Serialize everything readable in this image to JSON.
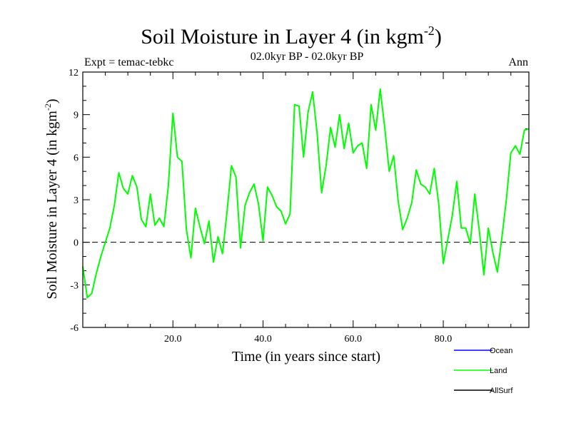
{
  "chart_data": {
    "type": "line",
    "title": "Soil Moisture in Layer 4 (in kgm",
    "title_sup": "-2",
    "title_close": ")",
    "subtitle": "02.0kyr BP - 02.0kyr BP",
    "left_label": "Expt = temac-tebkc",
    "right_label": "Ann",
    "xlabel": "Time (in years since start)",
    "ylabel": "Soil Moisture in Layer 4 (in kgm",
    "ylabel_sup": "-2",
    "ylabel_close": ")",
    "xlim": [
      0,
      99
    ],
    "ylim": [
      -6,
      12
    ],
    "x_ticks": [
      20,
      40,
      60,
      80
    ],
    "x_tick_labels": [
      "20.0",
      "40.0",
      "60.0",
      "80.0"
    ],
    "y_ticks": [
      -6,
      -3,
      0,
      3,
      6,
      9,
      12
    ],
    "y_tick_labels": [
      "-6",
      "-3",
      "0",
      "3",
      "6",
      "9",
      "12"
    ],
    "zero_line": 0,
    "legend": [
      {
        "name": "Ocean",
        "color": "#0000ff"
      },
      {
        "name": "Land",
        "color": "#00ff00"
      },
      {
        "name": "AllSurf",
        "color": "#000000"
      }
    ],
    "series": [
      {
        "name": "Land",
        "color": "#00ff00",
        "x": [
          0,
          1,
          2,
          3,
          4,
          5,
          6,
          7,
          8,
          9,
          10,
          11,
          12,
          13,
          14,
          15,
          16,
          17,
          18,
          19,
          20,
          21,
          22,
          23,
          24,
          25,
          26,
          27,
          28,
          29,
          30,
          31,
          32,
          33,
          34,
          35,
          36,
          37,
          38,
          39,
          40,
          41,
          42,
          43,
          44,
          45,
          46,
          47,
          48,
          49,
          50,
          51,
          52,
          53,
          54,
          55,
          56,
          57,
          58,
          59,
          60,
          61,
          62,
          63,
          64,
          65,
          66,
          67,
          68,
          69,
          70,
          71,
          72,
          73,
          74,
          75,
          76,
          77,
          78,
          79,
          80,
          81,
          82,
          83,
          84,
          85,
          86,
          87,
          88,
          89,
          90,
          91,
          92,
          93,
          94,
          95,
          96,
          97,
          98,
          99
        ],
        "values": [
          -1.7,
          -3.9,
          -3.6,
          -2.2,
          -1.0,
          0.0,
          1.0,
          2.6,
          4.9,
          3.8,
          3.4,
          4.7,
          3.9,
          1.6,
          1.1,
          3.4,
          1.2,
          1.7,
          1.1,
          4.0,
          9.1,
          6.0,
          5.7,
          0.9,
          -1.1,
          2.4,
          1.1,
          -0.1,
          1.5,
          -1.4,
          0.4,
          -0.8,
          2.1,
          5.4,
          4.6,
          -0.4,
          2.6,
          3.5,
          4.1,
          2.7,
          0.1,
          3.9,
          3.3,
          2.5,
          2.2,
          1.3,
          2.0,
          9.7,
          9.6,
          6.0,
          9.2,
          10.6,
          7.7,
          3.5,
          5.4,
          8.1,
          6.7,
          9.0,
          6.6,
          8.4,
          6.3,
          6.8,
          7.0,
          5.2,
          9.7,
          7.9,
          10.8,
          8.1,
          5.0,
          6.1,
          2.9,
          0.9,
          1.7,
          2.8,
          5.1,
          4.1,
          3.9,
          3.4,
          5.2,
          2.7,
          -1.5,
          0.2,
          1.9,
          4.3,
          1.0,
          1.0,
          -0.1,
          3.4,
          0.8,
          -2.3,
          1.0,
          -0.7,
          -2.1,
          0.3,
          3.0,
          6.3,
          6.8,
          6.2,
          7.9,
          8.0
        ]
      }
    ]
  }
}
